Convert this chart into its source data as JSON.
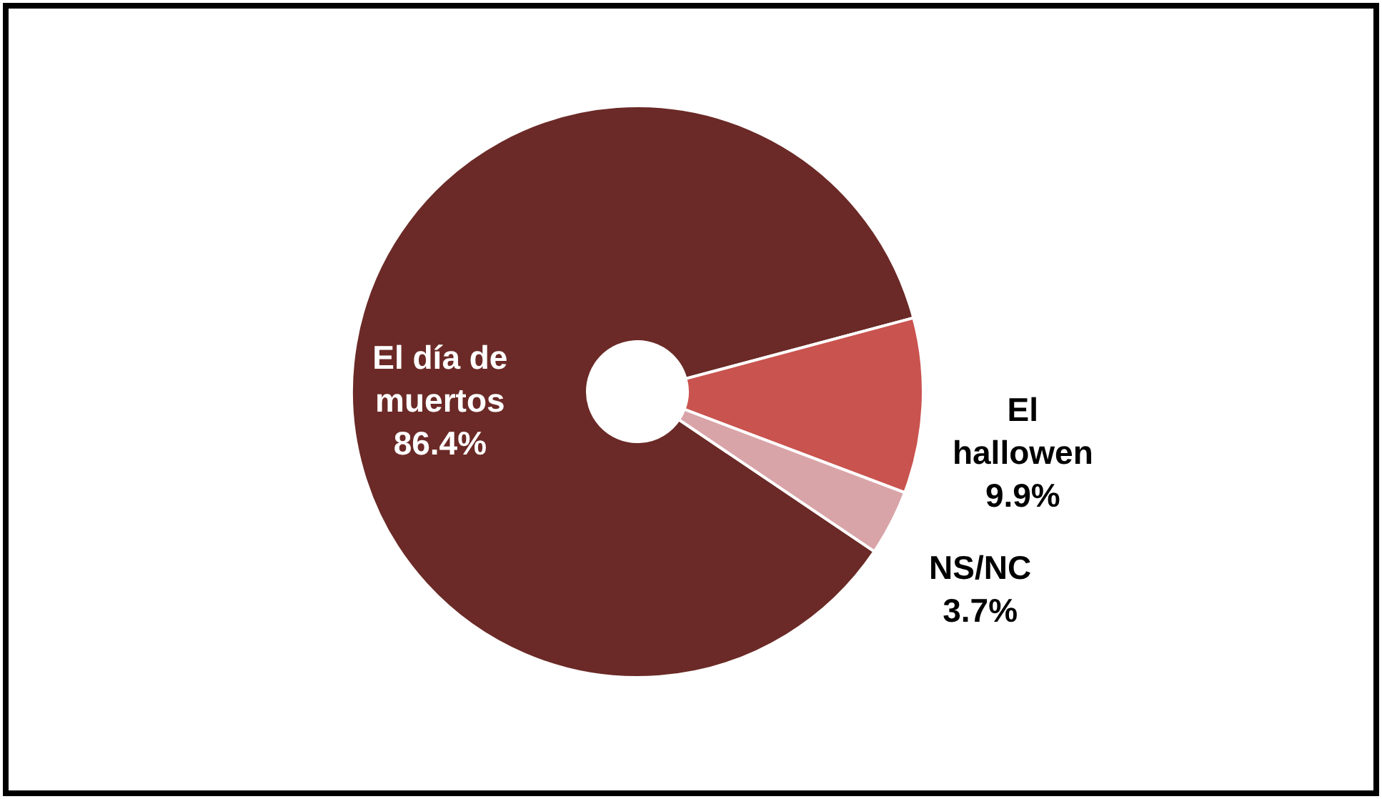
{
  "chart_data": {
    "type": "donut",
    "categories": [
      "El día de muertos",
      "El hallowen",
      "NS/NC"
    ],
    "values": [
      86.4,
      9.9,
      3.7
    ],
    "colors": [
      "#6b2a27",
      "#c9534f",
      "#d9a4a8"
    ],
    "value_labels": [
      "86.4%",
      "9.9%",
      "3.7%"
    ]
  }
}
